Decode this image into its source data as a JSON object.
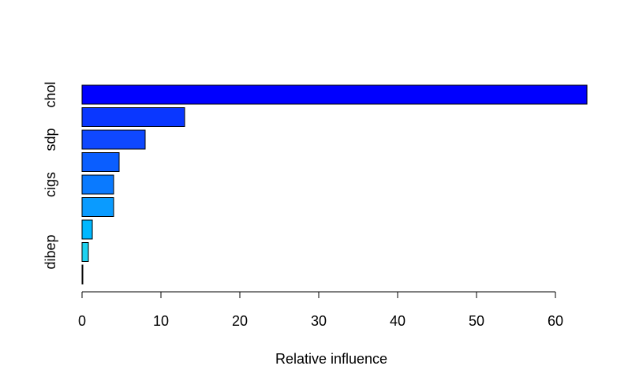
{
  "chart_data": {
    "type": "bar",
    "orientation": "horizontal",
    "title": "",
    "xlabel": "Relative influence",
    "ylabel": "",
    "xlim": [
      0,
      64
    ],
    "x_ticks": [
      "0",
      "10",
      "20",
      "30",
      "40",
      "50",
      "60"
    ],
    "y_tick_labels": [
      "chol",
      "sdp",
      "cigs",
      "dibep"
    ],
    "grid": false,
    "legend": "none",
    "bars": [
      {
        "value": 64.0,
        "color": "#0000FF",
        "label": "chol"
      },
      {
        "value": 13.0,
        "color": "#0A37FF",
        "label": ""
      },
      {
        "value": 8.0,
        "color": "#0F48FF",
        "label": "sdp"
      },
      {
        "value": 4.7,
        "color": "#0A5EFF",
        "label": ""
      },
      {
        "value": 4.0,
        "color": "#0A7AFF",
        "label": "cigs"
      },
      {
        "value": 4.0,
        "color": "#0A9BFF",
        "label": ""
      },
      {
        "value": 1.3,
        "color": "#00B8FF",
        "label": ""
      },
      {
        "value": 0.8,
        "color": "#1ED2F0",
        "label": "dibep"
      },
      {
        "value": 0.1,
        "color": "#000000",
        "label": ""
      }
    ]
  }
}
